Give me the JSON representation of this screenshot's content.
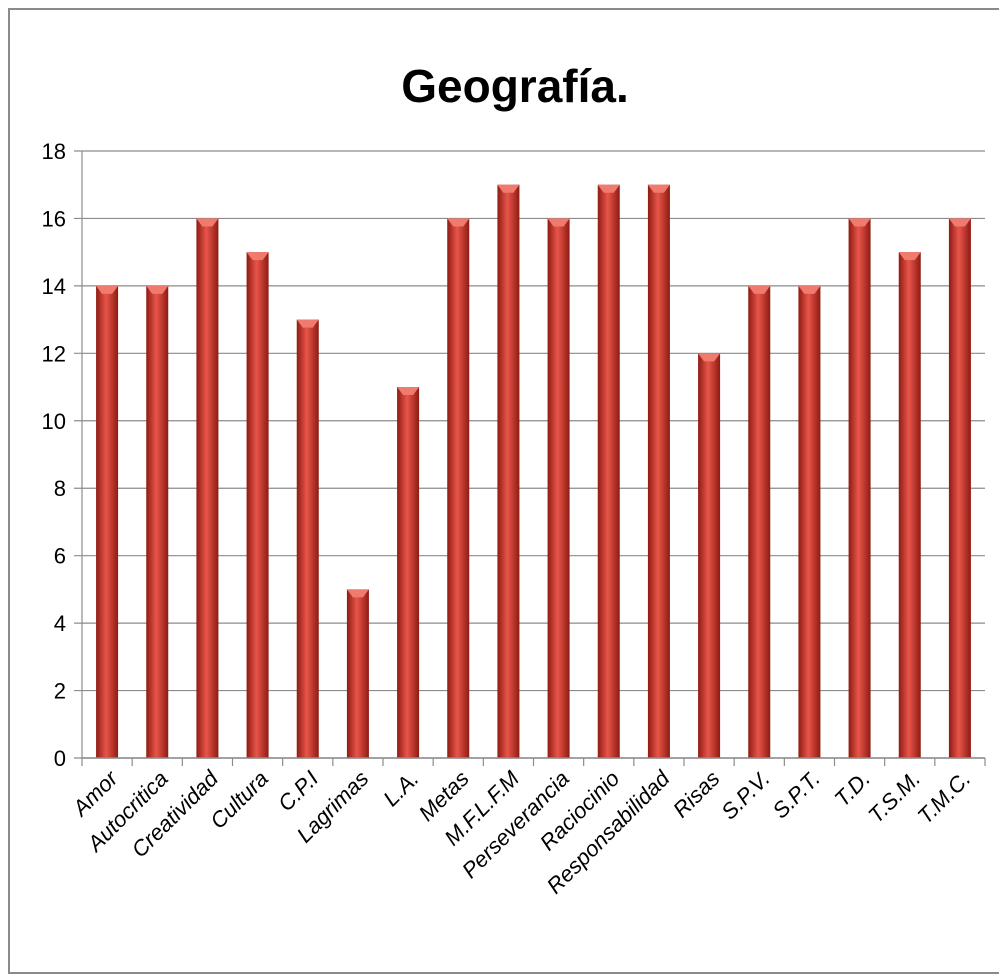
{
  "chart_data": {
    "type": "bar",
    "title": "Geografía.",
    "xlabel": "",
    "ylabel": "",
    "categories": [
      "Amor",
      "Autocritica",
      "Creatividad",
      "Cultura",
      "C.P.I",
      "Lagrimas",
      "L.A.",
      "Metas",
      "M.F.L.F.M",
      "Perseverancia",
      "Raciocinio",
      "Responsabilidad",
      "Risas",
      "S.P.V.",
      "S.P.T.",
      "T.D.",
      "T.S.M.",
      "T.M.C."
    ],
    "values": [
      14,
      14,
      16,
      15,
      13,
      5,
      11,
      16,
      17,
      16,
      17,
      17,
      12,
      14,
      14,
      16,
      15,
      16
    ],
    "ylim": [
      0,
      18
    ],
    "yticks": [
      0,
      2,
      4,
      6,
      8,
      10,
      12,
      14,
      16,
      18
    ],
    "grid": true,
    "legend": "none",
    "colors": {
      "bar": "#c0392b",
      "bar_light": "#e8554a",
      "bar_dark": "#8e1b12",
      "bar_top": "#f07a6e",
      "grid": "#8c8c8c",
      "axis": "#8c8c8c"
    }
  }
}
